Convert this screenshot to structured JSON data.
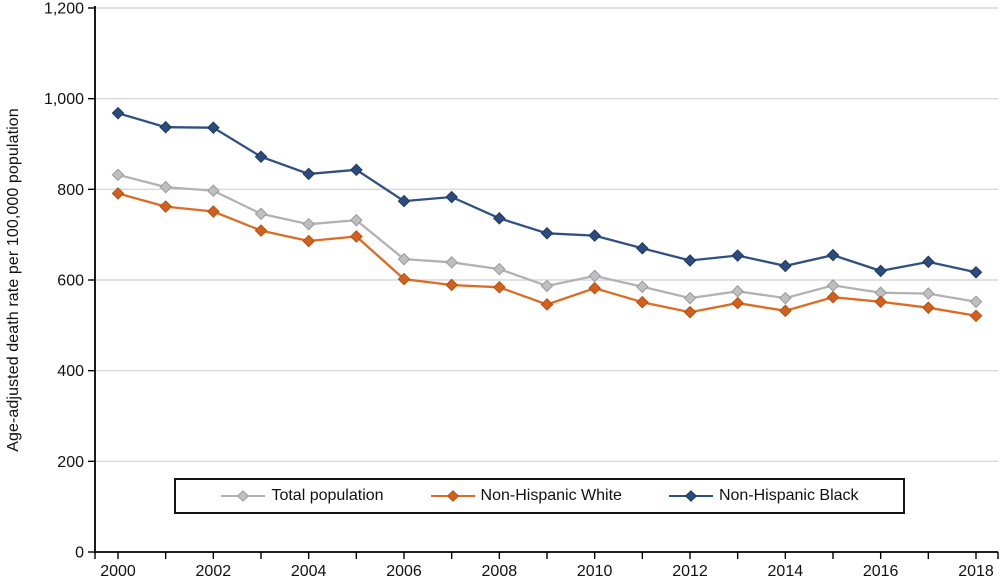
{
  "chart_data": {
    "type": "line",
    "title": "",
    "xlabel": "",
    "ylabel": "Age-adjusted death rate per 100,000 population",
    "ylim": [
      0,
      1200
    ],
    "ytick_step": 200,
    "ytick_labels": [
      "0",
      "200",
      "400",
      "600",
      "800",
      "1,000",
      "1,200"
    ],
    "grid": "horizontal",
    "gridline_color": "#D9D9D9",
    "legend_position": "bottom-center-inside",
    "marker_shape": "diamond",
    "x": [
      2000,
      2001,
      2002,
      2003,
      2004,
      2005,
      2006,
      2007,
      2008,
      2009,
      2010,
      2011,
      2012,
      2013,
      2014,
      2015,
      2016,
      2017,
      2018
    ],
    "xtick_label_every": 2,
    "series": [
      {
        "name": "Total population",
        "color": "#B2B2B2",
        "marker_fill": "#BFBFBF",
        "marker_stroke": "#9A9A9A",
        "values": [
          832,
          805,
          797,
          746,
          723,
          732,
          646,
          639,
          624,
          587,
          609,
          585,
          560,
          575,
          560,
          588,
          572,
          570,
          552
        ]
      },
      {
        "name": "Non-Hispanic White",
        "color": "#DD6B24",
        "marker_fill": "#D2611F",
        "marker_stroke": "#B64F0E",
        "values": [
          791,
          762,
          751,
          709,
          686,
          696,
          602,
          589,
          584,
          546,
          582,
          551,
          529,
          549,
          532,
          562,
          552,
          539,
          521
        ]
      },
      {
        "name": "Non-Hispanic Black",
        "color": "#2F5080",
        "marker_fill": "#2B4C7C",
        "marker_stroke": "#1F3864",
        "values": [
          968,
          937,
          936,
          872,
          834,
          843,
          774,
          783,
          736,
          703,
          698,
          670,
          643,
          654,
          631,
          655,
          620,
          640,
          617
        ]
      }
    ]
  }
}
